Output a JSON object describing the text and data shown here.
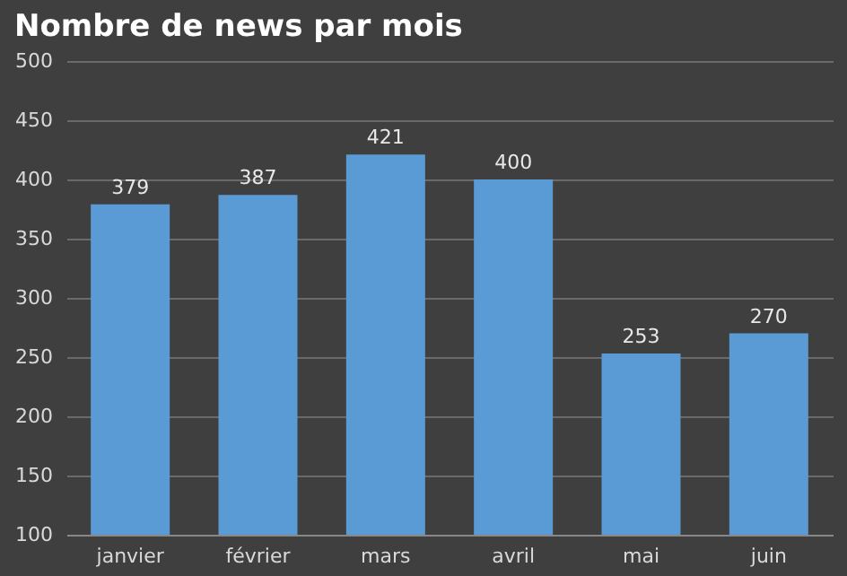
{
  "chart_data": {
    "type": "bar",
    "title": "Nombre de news par mois",
    "categories": [
      "janvier",
      "février",
      "mars",
      "avril",
      "mai",
      "juin"
    ],
    "values": [
      379,
      387,
      421,
      400,
      253,
      270
    ],
    "color": "#5b9bd5",
    "ylim": [
      100,
      500
    ],
    "yticks": [
      100,
      150,
      200,
      250,
      300,
      350,
      400,
      450,
      500
    ],
    "grid": "y",
    "data_labels": true
  }
}
